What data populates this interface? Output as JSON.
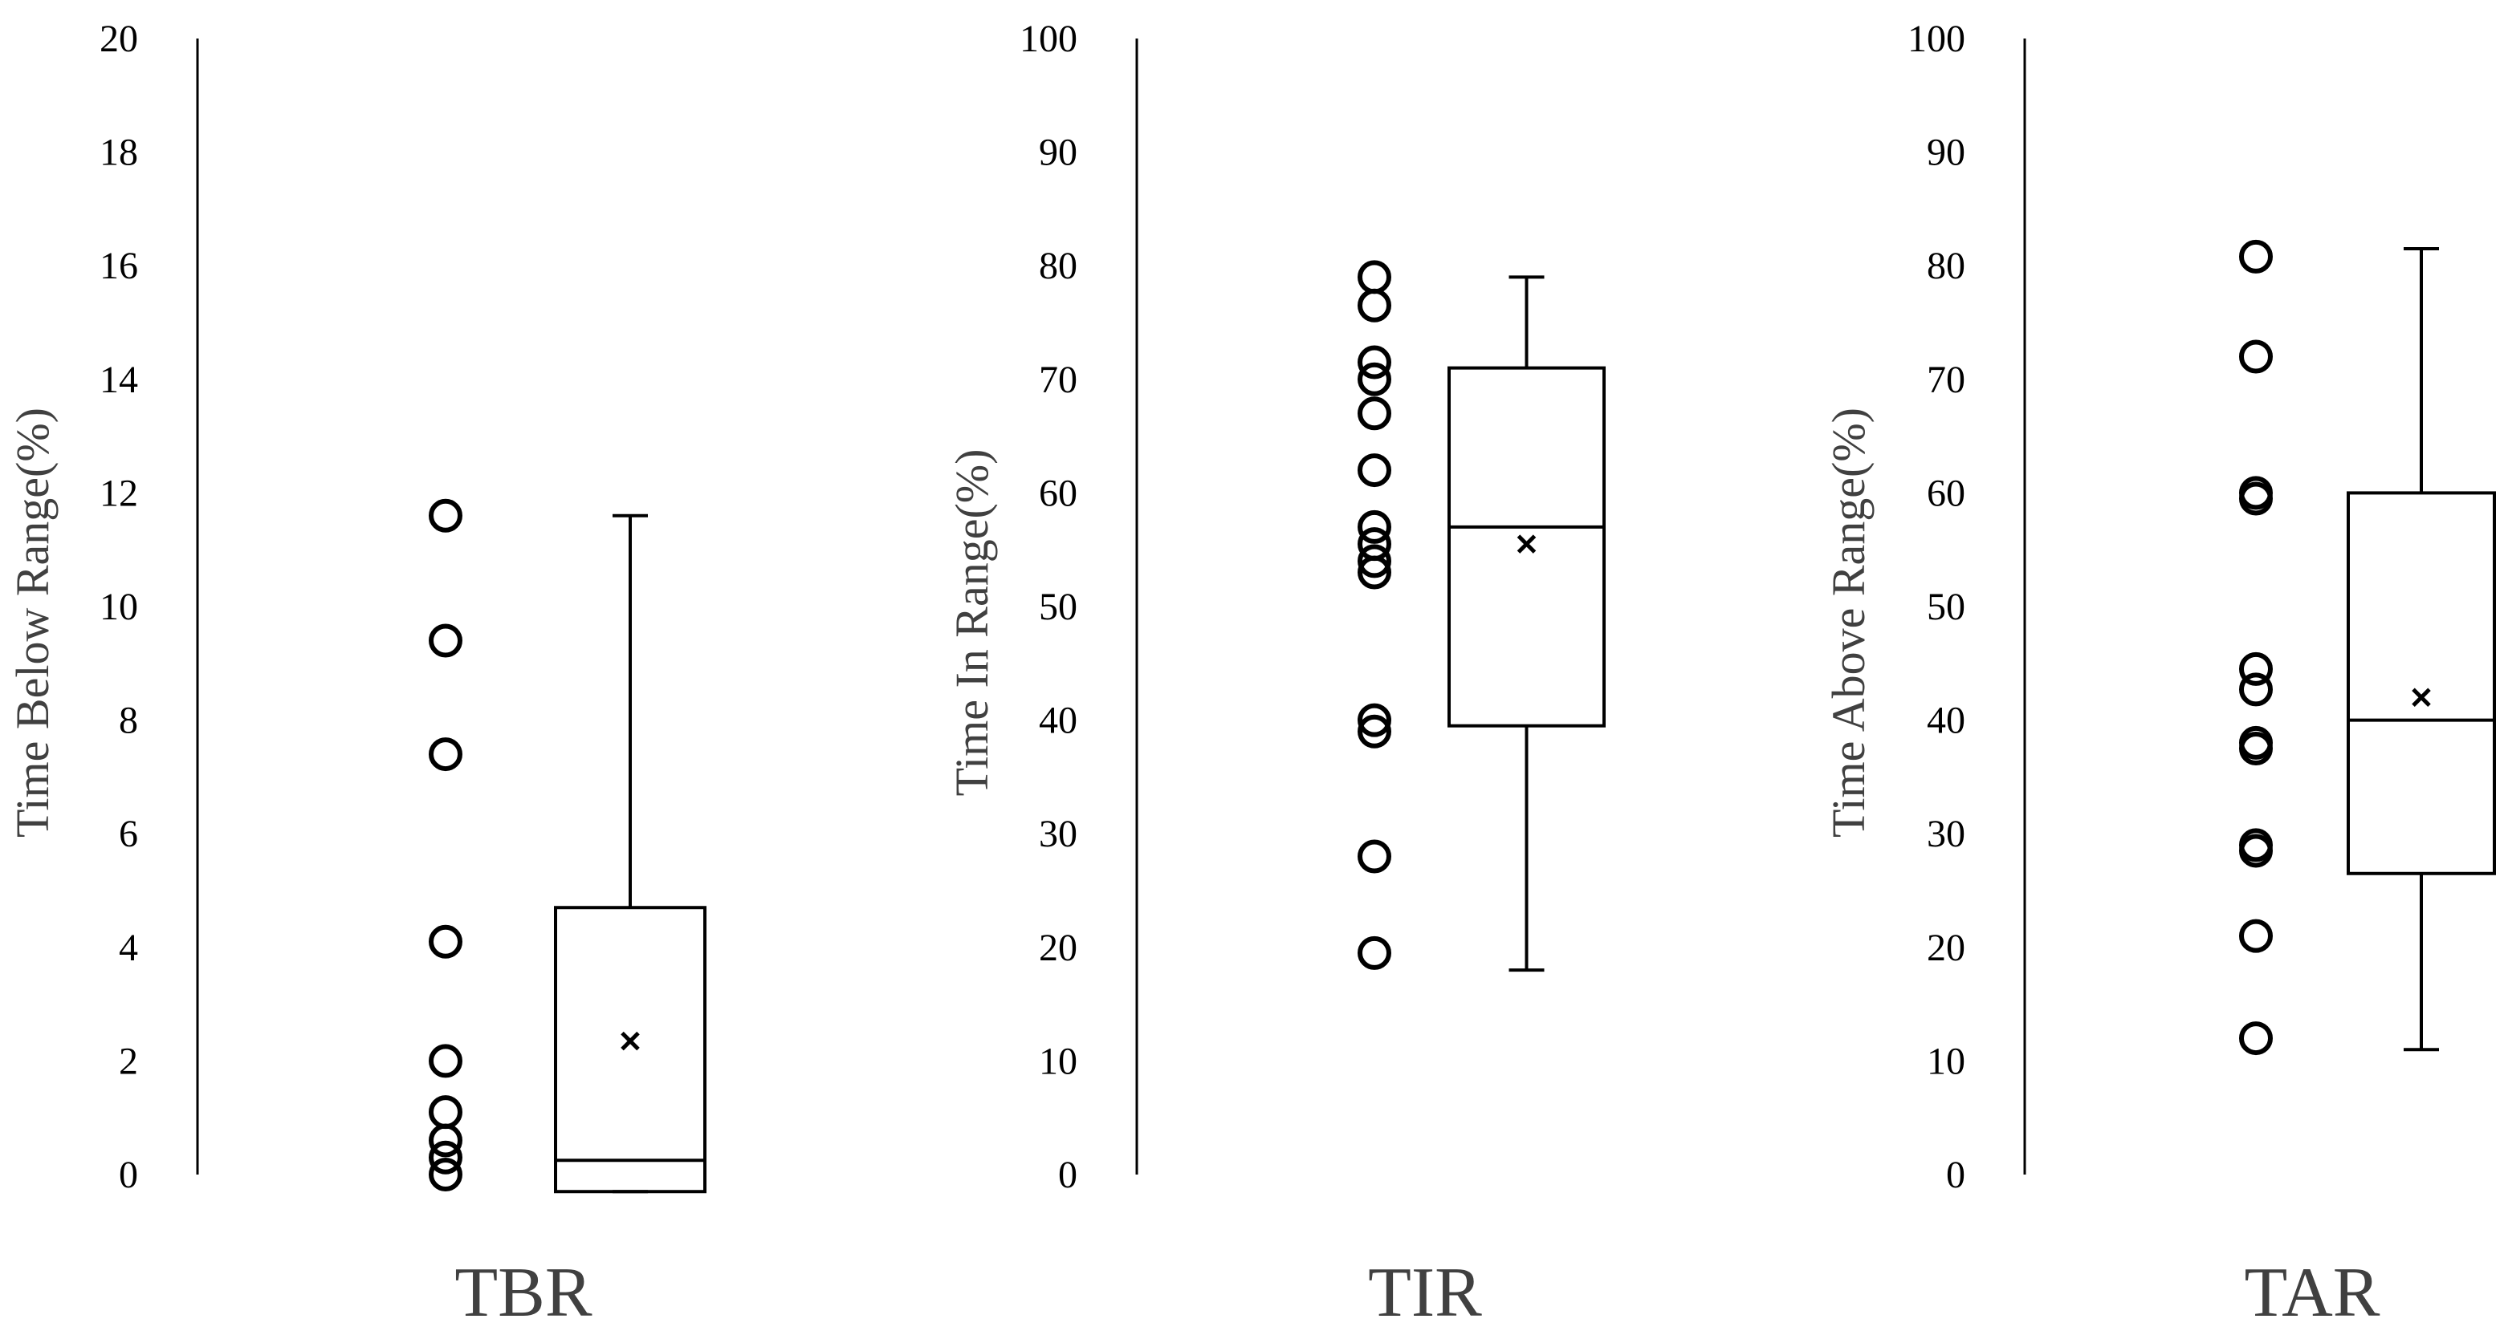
{
  "chart_data": [
    {
      "type": "box",
      "category": "TBR",
      "ylabel": "Time Below Range(%)",
      "ylim": [
        0,
        20
      ],
      "yticks": [
        "0",
        "2",
        "4",
        "6",
        "8",
        "10",
        "12",
        "14",
        "16",
        "18",
        "20"
      ],
      "points": [
        11.6,
        9.4,
        7.4,
        4.1,
        2.0,
        1.1,
        0.6,
        0.3,
        0.0
      ],
      "box": {
        "min": -0.3,
        "q1": -0.3,
        "median": 0.25,
        "q3": 4.7,
        "max": 11.6,
        "mean": 2.35
      }
    },
    {
      "type": "box",
      "category": "TIR",
      "ylabel": "Time In Range(%)",
      "ylim": [
        0,
        100
      ],
      "yticks": [
        "0",
        "10",
        "20",
        "30",
        "40",
        "50",
        "60",
        "70",
        "80",
        "90",
        "100"
      ],
      "points": [
        79,
        76.5,
        71.5,
        70,
        67,
        62,
        57,
        55.5,
        54,
        53,
        40,
        39,
        28,
        19.5
      ],
      "box": {
        "min": 18,
        "q1": 39.5,
        "median": 57,
        "q3": 71,
        "max": 79,
        "mean": 55.5
      }
    },
    {
      "type": "box",
      "category": "TAR",
      "ylabel": "Time Above Range(%)",
      "ylim": [
        0,
        100
      ],
      "yticks": [
        "0",
        "10",
        "20",
        "30",
        "40",
        "50",
        "60",
        "70",
        "80",
        "90",
        "100"
      ],
      "points": [
        80.8,
        72,
        60,
        59.5,
        44.5,
        42.7,
        38,
        37.5,
        29,
        28.5,
        21,
        12
      ],
      "box": {
        "min": 11,
        "q1": 26.5,
        "median": 40,
        "q3": 60,
        "max": 81.5,
        "mean": 42
      }
    }
  ]
}
